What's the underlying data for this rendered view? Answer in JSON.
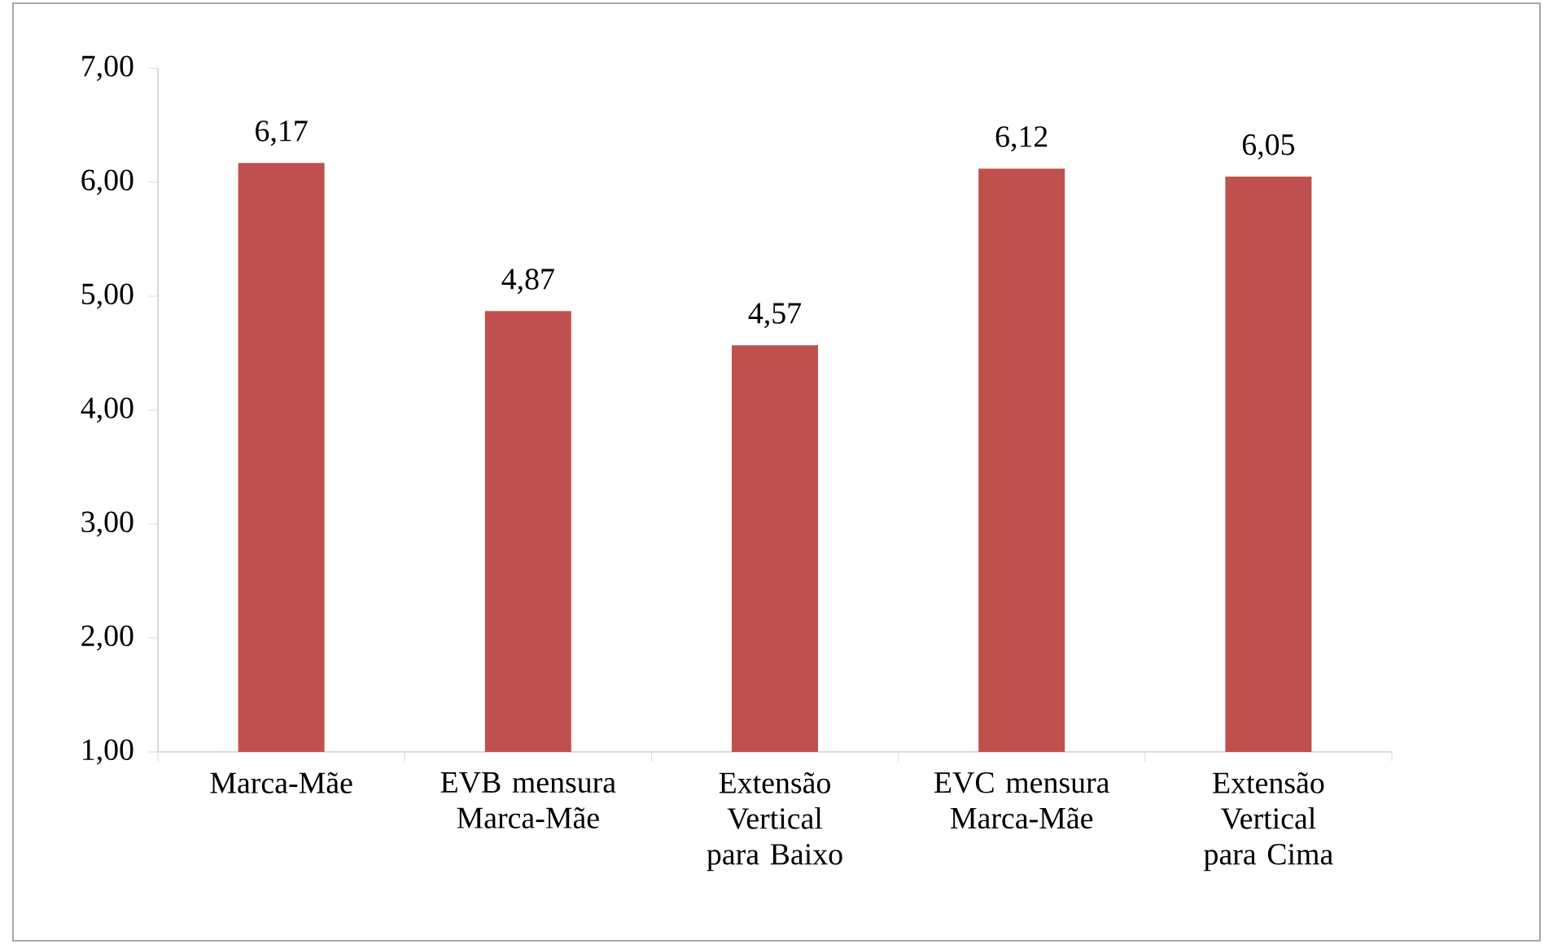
{
  "chart_data": {
    "type": "bar",
    "categories": [
      "Marca-Mãe",
      "EVB mensura Marca-Mãe",
      "Extensão Vertical para Baixo",
      "EVC mensura Marca-Mãe",
      "Extensão Vertical para Cima"
    ],
    "values": [
      6.17,
      4.87,
      4.57,
      6.12,
      6.05
    ],
    "value_labels": [
      "6,17",
      "4,87",
      "4,57",
      "6,12",
      "6,05"
    ],
    "ylim": [
      1,
      7
    ],
    "yticks": [
      {
        "value": 1,
        "label": "1,00"
      },
      {
        "value": 2,
        "label": "2,00"
      },
      {
        "value": 3,
        "label": "3,00"
      },
      {
        "value": 4,
        "label": "4,00"
      },
      {
        "value": 5,
        "label": "5,00"
      },
      {
        "value": 6,
        "label": "6,00"
      },
      {
        "value": 7,
        "label": "7,00"
      }
    ],
    "color": "#c0504d"
  }
}
